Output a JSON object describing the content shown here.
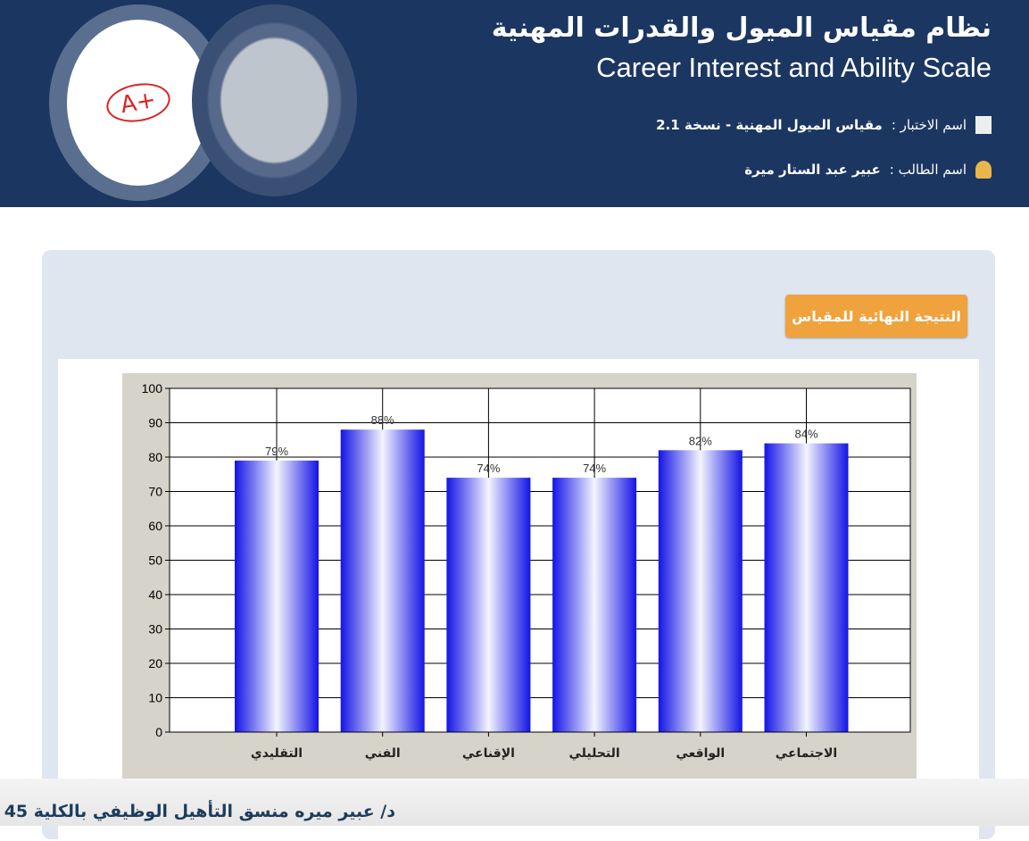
{
  "header": {
    "title_ar": "نظام مقياس الميول والقدرات المهنية",
    "title_en": "Career Interest and Ability Scale",
    "test_label": "اسم الاختبار :",
    "test_value": "مقياس الميول المهنية - نسخة 2.1",
    "student_label": "اسم الطالب :",
    "student_value": "عبير عبد الستار ميرة",
    "logo_text": "A+"
  },
  "result_button": "النتيجة النهائية للمقياس",
  "footer": {
    "caption": "د/ عبير ميره  منسق التأهيل الوظيفي بالكلية 45"
  },
  "colors": {
    "header": "#1b3661",
    "button": "#f0a23d",
    "bar": "#1010e8"
  },
  "chart_data": {
    "type": "bar",
    "categories": [
      "التقليدي",
      "الفني",
      "الإقناعي",
      "التحليلي",
      "الواقعي",
      "الاجتماعي"
    ],
    "values": [
      79,
      88,
      74,
      74,
      82,
      84
    ],
    "data_labels": [
      "79%",
      "88%",
      "74%",
      "74%",
      "82%",
      "84%"
    ],
    "ylim": [
      0,
      100
    ],
    "yticks": [
      0,
      10,
      20,
      30,
      40,
      50,
      60,
      70,
      80,
      90,
      100
    ],
    "grid": true
  }
}
